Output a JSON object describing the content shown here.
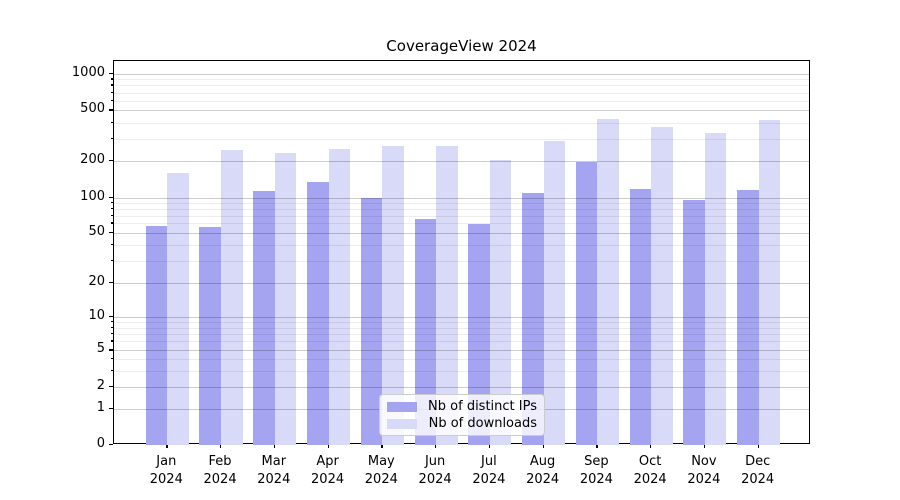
{
  "chart_data": {
    "type": "bar",
    "title": "CoverageView 2024",
    "categories": [
      "Jan",
      "Feb",
      "Mar",
      "Apr",
      "May",
      "Jun",
      "Jul",
      "Aug",
      "Sep",
      "Oct",
      "Nov",
      "Dec"
    ],
    "category_year": "2024",
    "series": [
      {
        "name": "Nb of distinct IPs",
        "color": "#a4a4f1",
        "values": [
          57,
          56,
          113,
          135,
          100,
          66,
          59,
          109,
          196,
          117,
          96,
          116
        ]
      },
      {
        "name": "Nb of downloads",
        "color": "#d9d9f8",
        "values": [
          160,
          245,
          230,
          250,
          264,
          264,
          205,
          288,
          425,
          370,
          330,
          418
        ]
      }
    ],
    "yscale": "symlog",
    "yticks": [
      0,
      1,
      2,
      5,
      10,
      20,
      50,
      100,
      200,
      500,
      1000
    ],
    "minor_yticks": [
      3,
      4,
      6,
      7,
      8,
      9,
      30,
      40,
      60,
      70,
      80,
      90,
      300,
      400,
      600,
      700,
      800,
      900
    ],
    "ylim": [
      0,
      1300
    ],
    "xlabel": "",
    "ylabel": "",
    "grid": "horizontal major and minor",
    "legend_position": "lower center"
  }
}
